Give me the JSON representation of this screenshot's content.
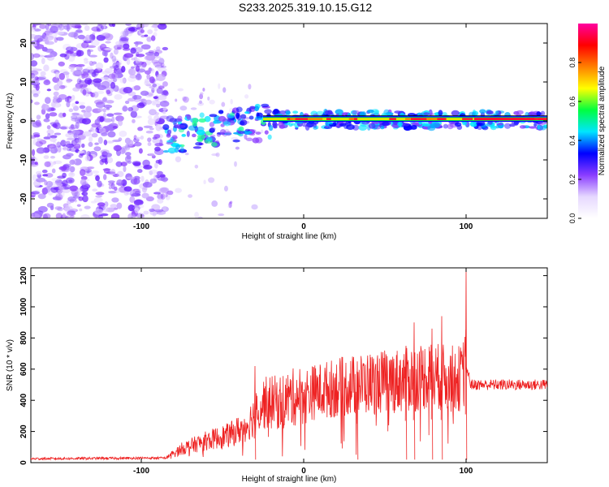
{
  "title": "S233.2025.319.10.15.G12",
  "chart_data": [
    {
      "type": "heatmap",
      "xlabel": "Height of straight line (km)",
      "ylabel": "Frequency (Hz)",
      "xlim": [
        -168,
        150
      ],
      "ylim": [
        -25,
        25
      ],
      "x_ticks": [
        -100,
        0,
        100
      ],
      "y_ticks": [
        -20,
        -10,
        0,
        10,
        20
      ],
      "colorbar": {
        "label": "Normalized spectral amplitude",
        "range": [
          0,
          1
        ],
        "ticks": [
          0.0,
          0.2,
          0.4,
          0.6,
          0.8
        ],
        "tick_labels": [
          "0.0",
          "0.2",
          "0.4",
          "0.6",
          "0.8"
        ],
        "colors": [
          "#ffffff",
          "#e6d8ff",
          "#8a3dff",
          "#0000ff",
          "#00e5ff",
          "#00ff40",
          "#ffff00",
          "#ff8000",
          "#ff0000",
          "#ff00a0"
        ]
      },
      "line_x": [
        -25,
        150
      ],
      "line_y": 0.5
    },
    {
      "type": "line",
      "xlabel": "Height of straight line (km)",
      "ylabel": "SNR (10 * v/v)",
      "xlim": [
        -168,
        150
      ],
      "ylim": [
        0,
        1250
      ],
      "x_ticks": [
        -100,
        0,
        100
      ],
      "y_ticks": [
        0,
        200,
        400,
        600,
        800,
        1000,
        1200
      ],
      "color": "#ee2222",
      "envelope": {
        "x": [
          -168,
          -85,
          -75,
          -60,
          -45,
          -35,
          -25,
          -15,
          0,
          20,
          40,
          60,
          75,
          90,
          97,
          100,
          103,
          110,
          130,
          150
        ],
        "y": [
          25,
          30,
          90,
          140,
          180,
          240,
          380,
          390,
          440,
          480,
          510,
          530,
          560,
          540,
          540,
          620,
          500,
          500,
          500,
          500
        ]
      },
      "spikes": [
        {
          "x": -30,
          "y": 620
        },
        {
          "x": 33,
          "y": 650
        },
        {
          "x": 63,
          "y": 720
        },
        {
          "x": 68,
          "y": 900
        },
        {
          "x": 79,
          "y": 860
        },
        {
          "x": 85,
          "y": 940
        },
        {
          "x": 100,
          "y": 1230
        }
      ]
    }
  ]
}
